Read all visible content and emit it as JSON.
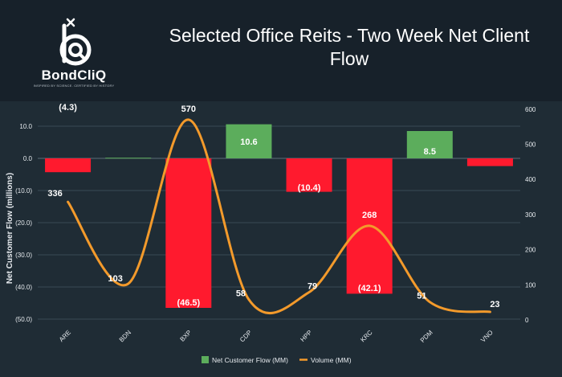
{
  "brand": {
    "name": "BondCliQ",
    "tagline": "INSPIRED BY SCIENCE. CERTIFIED BY HISTORY"
  },
  "chart_data": {
    "type": "bar",
    "title": "Selected Office Reits - Two Week Net Client Flow",
    "ylabel": "Net Customer Flow (millions)",
    "y2label": "",
    "categories": [
      "ARE",
      "BDN",
      "BXP",
      "CDP",
      "HPP",
      "KRC",
      "PDM",
      "VNO"
    ],
    "ylim": [
      -50,
      15
    ],
    "yticks": [
      10,
      0,
      -10,
      -20,
      -30,
      -40,
      -50
    ],
    "ytick_labels": [
      "10.0",
      "0.0",
      "(10.0)",
      "(20.0)",
      "(30.0)",
      "(40.0)",
      "(50.0)"
    ],
    "y2lim": [
      0,
      600
    ],
    "y2ticks": [
      0,
      100,
      200,
      300,
      400,
      500,
      600
    ],
    "y2tick_labels": [
      "0",
      "100",
      "200",
      "300",
      "400",
      "500",
      "600"
    ],
    "grid": true,
    "legend_position": "bottom",
    "series": [
      {
        "name": "Net Customer Flow (MM)",
        "kind": "bar",
        "axis": "left",
        "values": [
          -4.3,
          0.2,
          -46.5,
          10.6,
          -10.4,
          -42.1,
          8.5,
          -2.4
        ],
        "labels": [
          "(4.3)",
          "",
          "(46.5)",
          "10.6",
          "(10.4)",
          "(42.1)",
          "8.5",
          ""
        ],
        "positive_color": "#5cad5c",
        "negative_color": "#ff1a2e"
      },
      {
        "name": "Volume (MM)",
        "kind": "line",
        "axis": "right",
        "values": [
          336,
          103,
          570,
          58,
          79,
          268,
          51,
          23
        ],
        "labels": [
          "336",
          "103",
          "570",
          "58",
          "79",
          "268",
          "51",
          "23"
        ],
        "color": "#f39a2b"
      }
    ]
  }
}
